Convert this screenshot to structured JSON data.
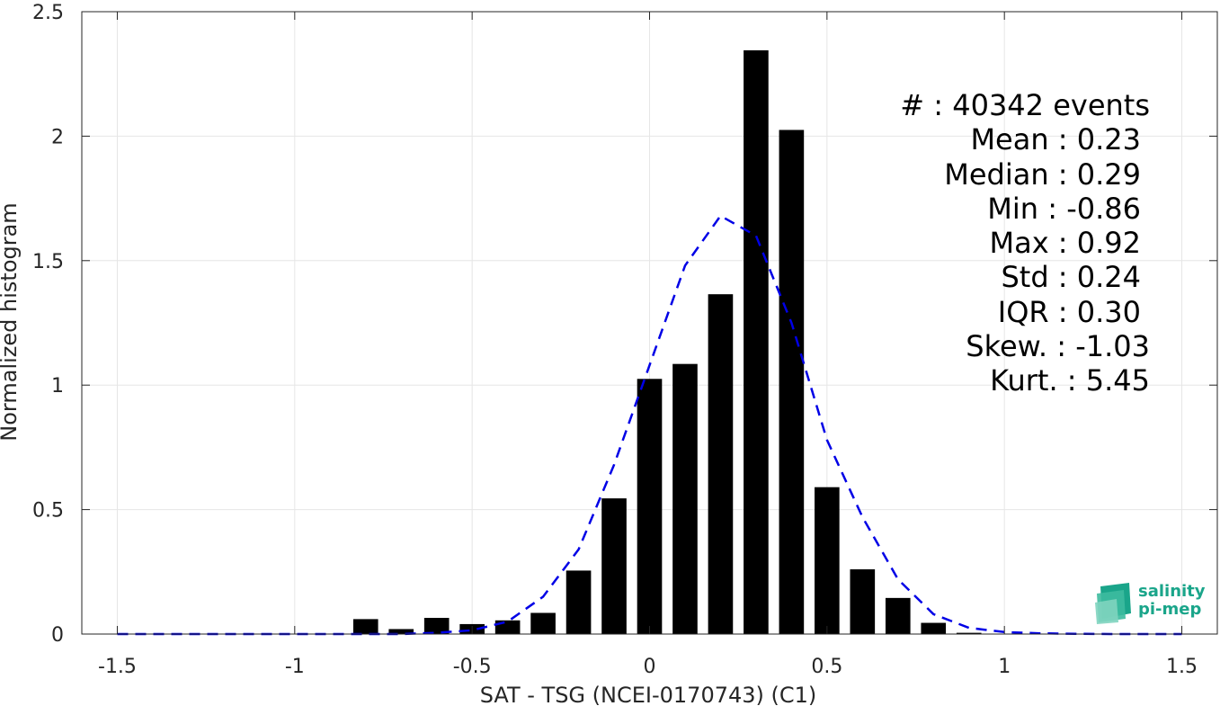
{
  "chart_data": {
    "type": "bar",
    "xlabel": "SAT - TSG (NCEI-0170743) (C1)",
    "ylabel": "Normalized histogram",
    "xlim": [
      -1.6,
      1.6
    ],
    "ylim": [
      0,
      2.5
    ],
    "xticks": [
      -1.5,
      -1,
      -0.5,
      0,
      0.5,
      1,
      1.5
    ],
    "xtick_labels": [
      "-1.5",
      "-1",
      "-0.5",
      "0",
      "0.5",
      "1",
      "1.5"
    ],
    "yticks": [
      0,
      0.5,
      1,
      1.5,
      2,
      2.5
    ],
    "ytick_labels": [
      "0",
      "0.5",
      "1",
      "1.5",
      "2",
      "2.5"
    ],
    "grid": true,
    "bar_width": 0.07,
    "bar_color": "#000000",
    "histogram": {
      "x": [
        -0.8,
        -0.7,
        -0.6,
        -0.5,
        -0.4,
        -0.3,
        -0.2,
        -0.1,
        0.0,
        0.1,
        0.2,
        0.3,
        0.4,
        0.5,
        0.6,
        0.7,
        0.8,
        0.9
      ],
      "values": [
        0.06,
        0.02,
        0.065,
        0.04,
        0.055,
        0.085,
        0.255,
        0.545,
        1.025,
        1.085,
        1.365,
        2.345,
        2.025,
        0.59,
        0.26,
        0.145,
        0.045,
        0.005
      ]
    },
    "fit_curve": {
      "style": "dashed",
      "color": "#0000e6",
      "x": [
        -1.5,
        -1.4,
        -1.3,
        -1.2,
        -1.1,
        -1.0,
        -0.9,
        -0.8,
        -0.7,
        -0.6,
        -0.5,
        -0.4,
        -0.3,
        -0.2,
        -0.1,
        0.0,
        0.1,
        0.2,
        0.3,
        0.4,
        0.5,
        0.6,
        0.7,
        0.8,
        0.9,
        1.0,
        1.1,
        1.2,
        1.3,
        1.4,
        1.5
      ],
      "y": [
        0,
        0,
        0,
        0,
        0,
        0,
        0,
        0,
        0,
        0.005,
        0.015,
        0.05,
        0.15,
        0.34,
        0.68,
        1.08,
        1.48,
        1.68,
        1.6,
        1.25,
        0.78,
        0.47,
        0.22,
        0.08,
        0.025,
        0.008,
        0.003,
        0.001,
        0,
        0,
        0
      ]
    },
    "stats": [
      "#  : 40342 events",
      "Mean : 0.23",
      "Median : 0.29",
      "Min : -0.86",
      "Max : 0.92",
      "Std : 0.24",
      "IQR : 0.30",
      "Skew. : -1.03",
      "Kurt. : 5.45"
    ]
  },
  "logo": {
    "line1": "salinity",
    "line2": "pi-mep",
    "color": "#1aa58a"
  }
}
